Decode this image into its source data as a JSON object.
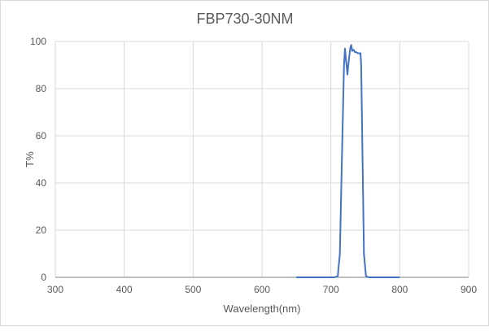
{
  "chart_data": {
    "type": "line",
    "title": "FBP730-30NM",
    "xlabel": "Wavelength(nm)",
    "ylabel": "T%",
    "xlim": [
      300,
      900
    ],
    "ylim": [
      0,
      100
    ],
    "xticks": [
      300,
      400,
      500,
      600,
      700,
      800,
      900
    ],
    "yticks": [
      0,
      20,
      40,
      60,
      80,
      100
    ],
    "grid": true,
    "legend": "none",
    "series": [
      {
        "color": "#4472c4",
        "x": [
          650,
          705,
          710,
          713,
          716,
          719,
          720.5,
          722,
          724,
          726,
          728,
          729.5,
          731,
          733,
          735,
          737,
          739,
          743,
          744,
          746,
          748,
          751,
          755,
          800
        ],
        "y": [
          0,
          0,
          0.5,
          10,
          50,
          90,
          97,
          92,
          86,
          92,
          97,
          98.5,
          96,
          96.5,
          95.5,
          95.5,
          95,
          95,
          90,
          50,
          10,
          0.5,
          0,
          0
        ]
      }
    ]
  }
}
